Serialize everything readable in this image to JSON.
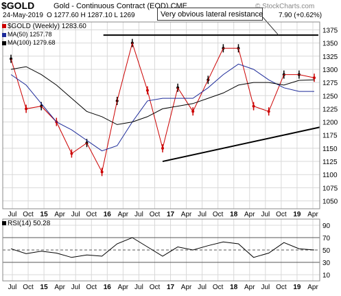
{
  "header": {
    "symbol": "$GOLD",
    "name": "Gold - Continuous Contract (EOD) CME",
    "date": "24-May-2019",
    "ohlc": "O 1277.60  H 1287.10  L 1269",
    "change": "7.90 (+0.62%)",
    "watermark": "© StockCharts.com"
  },
  "annotation": "Very obvious lateral resistance",
  "legend": {
    "price": "$GOLD (Weekly) 1283.60",
    "ma50": "MA(50) 1257.78",
    "ma100": "MA(100) 1279.68",
    "rsi": "RSI(14) 50.28"
  },
  "colors": {
    "up": "#000000",
    "down": "#cc0000",
    "ma50": "#1c2a99",
    "ma100": "#000000",
    "grid": "#d8d8d8",
    "trendline": "#000000",
    "rsi": "#000000"
  },
  "chart_data": [
    {
      "type": "line",
      "x": [
        "Jul 2014",
        "Oct 2014",
        "Jan 2015",
        "Apr 2015",
        "Jul 2015",
        "Oct 2015",
        "Jan 2016",
        "Apr 2016",
        "Jul 2016",
        "Oct 2016",
        "Jan 2017",
        "Apr 2017",
        "Jul 2017",
        "Oct 2017",
        "Jan 2018",
        "Apr 2018",
        "Jul 2018",
        "Oct 2018",
        "Jan 2019",
        "Apr 2019",
        "May 2019"
      ],
      "series": [
        {
          "name": "$GOLD (Weekly)",
          "values": [
            1320,
            1225,
            1230,
            1200,
            1140,
            1160,
            1105,
            1240,
            1350,
            1260,
            1150,
            1265,
            1220,
            1280,
            1340,
            1340,
            1230,
            1220,
            1290,
            1290,
            1284
          ]
        },
        {
          "name": "MA(50)",
          "values": [
            1290,
            1270,
            1235,
            1200,
            1185,
            1165,
            1145,
            1155,
            1200,
            1240,
            1245,
            1245,
            1245,
            1265,
            1290,
            1310,
            1300,
            1280,
            1265,
            1258,
            1258
          ]
        },
        {
          "name": "MA(100)",
          "values": [
            1300,
            1305,
            1290,
            1270,
            1245,
            1220,
            1210,
            1195,
            1200,
            1210,
            1225,
            1230,
            1235,
            1245,
            1255,
            1270,
            1275,
            1275,
            1270,
            1279,
            1280
          ]
        }
      ],
      "title": "$GOLD Gold - Continuous Contract (EOD) CME",
      "x_tick_labels": [
        "Jul",
        "Oct",
        "15",
        "Apr",
        "Jul",
        "Oct",
        "16",
        "Apr",
        "Jul",
        "Oct",
        "17",
        "Apr",
        "Jul",
        "Oct",
        "18",
        "Apr",
        "Jul",
        "Oct",
        "19",
        "Apr"
      ],
      "y_ticks": [
        1050,
        1075,
        1100,
        1125,
        1150,
        1175,
        1200,
        1225,
        1250,
        1275,
        1300,
        1325,
        1350,
        1375
      ],
      "ylim": [
        1035,
        1390
      ],
      "resistance_level": 1365,
      "support_trendline": [
        {
          "x": "Jan 2017",
          "y": 1125
        },
        {
          "x": "May 2019",
          "y": 1190
        }
      ],
      "annotations": [
        "Very obvious lateral resistance"
      ],
      "grid": true
    },
    {
      "type": "line",
      "series": [
        {
          "name": "RSI(14)",
          "values": [
            52,
            44,
            48,
            45,
            38,
            42,
            40,
            60,
            70,
            55,
            40,
            55,
            50,
            57,
            63,
            60,
            38,
            45,
            62,
            52,
            50
          ]
        }
      ],
      "y_ticks": [
        10,
        30,
        50,
        70,
        90
      ],
      "ylim": [
        0,
        100
      ],
      "reference_lines": [
        30,
        50,
        70
      ],
      "grid": true
    }
  ]
}
